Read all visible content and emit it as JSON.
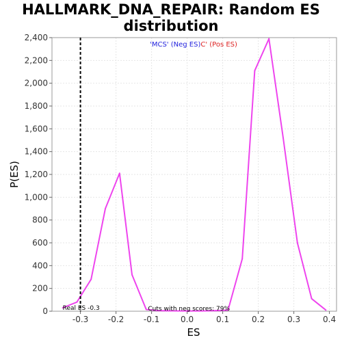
{
  "chart_data": {
    "type": "line",
    "title": "HALLMARK_DNA_REPAIR: Random ES distribution",
    "xlabel": "ES",
    "ylabel": "P(ES)",
    "xlim": [
      -0.38,
      0.42
    ],
    "ylim": [
      0,
      2400
    ],
    "x_ticks": [
      -0.3,
      -0.2,
      -0.1,
      0.0,
      0.1,
      0.2,
      0.3,
      0.4
    ],
    "x_tick_labels": [
      "-0.3",
      "-0.2",
      "-0.1",
      "0.0",
      "0.1",
      "0.2",
      "0.3",
      "0.4"
    ],
    "y_ticks": [
      0,
      200,
      400,
      600,
      800,
      1000,
      1200,
      1400,
      1600,
      1800,
      2000,
      2200,
      2400
    ],
    "y_tick_labels": [
      "0",
      "200",
      "400",
      "600",
      "800",
      "1,000",
      "1,200",
      "1,400",
      "1,600",
      "1,800",
      "2,000",
      "2,200",
      "2,400"
    ],
    "grid": true,
    "series": [
      {
        "color": "#ee44ee",
        "x": [
          -0.35,
          -0.31,
          -0.27,
          -0.23,
          -0.19,
          -0.155,
          -0.115,
          -0.08,
          -0.04,
          0.0,
          0.04,
          0.08,
          0.115,
          0.155,
          0.19,
          0.23,
          0.27,
          0.31,
          0.35,
          0.39
        ],
        "y": [
          30,
          80,
          280,
          900,
          1210,
          320,
          15,
          5,
          3,
          2,
          2,
          5,
          10,
          460,
          2110,
          2390,
          1520,
          600,
          110,
          10
        ]
      }
    ],
    "real_es": {
      "x": -0.3,
      "label": "Real ES -0.3"
    },
    "legend": [
      {
        "text": "'MCS' (Neg ES)",
        "color": "#2222dd"
      },
      {
        "text": "C' (Pos ES)",
        "color": "#dd2222"
      }
    ],
    "annotation": "Cuts with neg scores: 79%"
  }
}
